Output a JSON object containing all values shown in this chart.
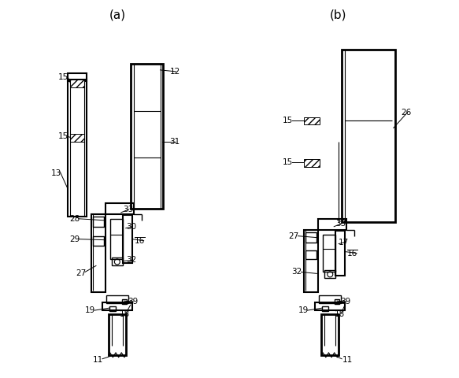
{
  "bg_color": "#ffffff",
  "line_color": "#000000",
  "fig_width": 5.83,
  "fig_height": 4.8,
  "dpi": 100
}
